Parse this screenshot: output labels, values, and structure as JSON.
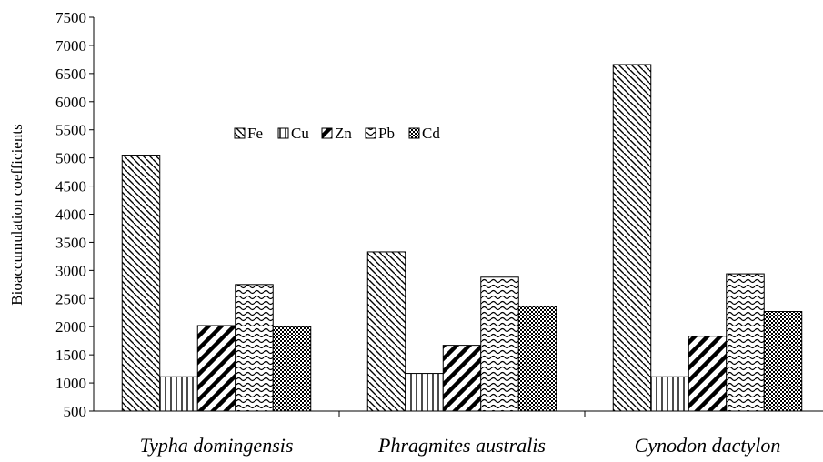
{
  "chart_data": {
    "type": "bar",
    "title": "",
    "xlabel": "",
    "ylabel": "Bioaccumulation coefficients",
    "ylim": [
      500,
      7500
    ],
    "yticks": [
      500,
      1000,
      1500,
      2000,
      2500,
      3000,
      3500,
      4000,
      4500,
      5000,
      5500,
      6000,
      6500,
      7000,
      7500
    ],
    "categories": [
      "Typha domingensis",
      "Phragmites australis",
      "Cynodon dactylon"
    ],
    "series": [
      {
        "name": "Fe",
        "values": [
          5050,
          3330,
          6660
        ],
        "pattern": "diag-down"
      },
      {
        "name": "Cu",
        "values": [
          1110,
          1170,
          1110
        ],
        "pattern": "vertical"
      },
      {
        "name": "Zn",
        "values": [
          2020,
          1670,
          1830
        ],
        "pattern": "diag-up-bold"
      },
      {
        "name": "Pb",
        "values": [
          2750,
          2880,
          2940
        ],
        "pattern": "waves"
      },
      {
        "name": "Cd",
        "values": [
          2000,
          2360,
          2270
        ],
        "pattern": "checker"
      }
    ],
    "legend_position": "inside-top-center",
    "grid": false
  }
}
